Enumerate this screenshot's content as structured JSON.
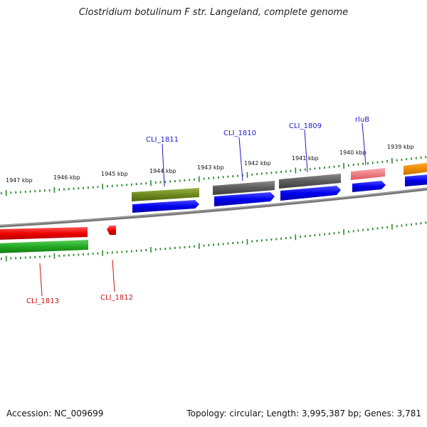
{
  "title": "Clostridium botulinum F str. Langeland, complete genome",
  "footer": {
    "accession": "Accession: NC_009699",
    "summary": "Topology: circular; Length: 3,995,387 bp; Genes: 3,781"
  },
  "kbp_labels": [
    "1947 kbp",
    "1946 kbp",
    "1945 kbp",
    "1944 kbp",
    "1943 kbp",
    "1942 kbp",
    "1941 kbp",
    "1940 kbp",
    "1939 kbp"
  ],
  "gene_labels": [
    "CLI_1811",
    "CLI_1810",
    "CLI_1809",
    "rluB",
    "CLI_1813",
    "CLI_1812"
  ],
  "colors": {
    "forward_label": "#1a1acc",
    "reverse_label": "#cc1111",
    "tick": "#2a8a2a",
    "backbone": "#808080",
    "cds_forward": "#0000ee",
    "cds_reverse": "#ee0000",
    "olive": "#6f8a1e",
    "dark_grey": "#5c5c5c",
    "pink": "#ef7f84",
    "orange": "#f08a00",
    "green": "#22aa22"
  }
}
